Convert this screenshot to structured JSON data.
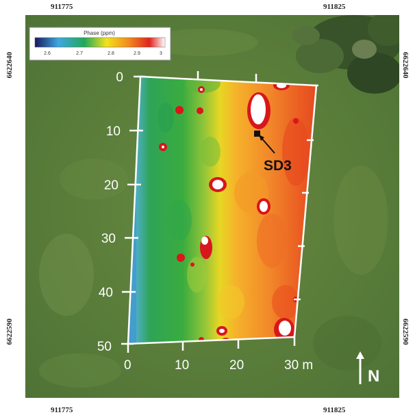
{
  "coords": {
    "top_left": "911775",
    "top_right": "911825",
    "bottom_left": "911775",
    "bottom_right": "911825",
    "left_upper": "6622640",
    "left_lower": "6622590",
    "right_upper": "6622640",
    "right_lower": "6622590"
  },
  "legend": {
    "title": "Phase (ppm)",
    "ticks": [
      "2.6",
      "2.7",
      "2.8",
      "2.9",
      "3"
    ],
    "colors": [
      "#1a1a5e",
      "#3ea6e0",
      "#22a85a",
      "#f2e21c",
      "#f28a1f",
      "#e0241e",
      "#ffffff"
    ]
  },
  "grid": {
    "y_ticks": [
      "0",
      "10",
      "20",
      "30",
      "40",
      "50"
    ],
    "x_ticks": [
      "0",
      "10",
      "20",
      "30 m"
    ]
  },
  "annotations": {
    "sd3": "SD3"
  },
  "north_arrow": {
    "label": "N"
  },
  "colors": {
    "grass": "#5b7d3e",
    "trees": "#3e5a30",
    "frame": "#ffffff"
  }
}
